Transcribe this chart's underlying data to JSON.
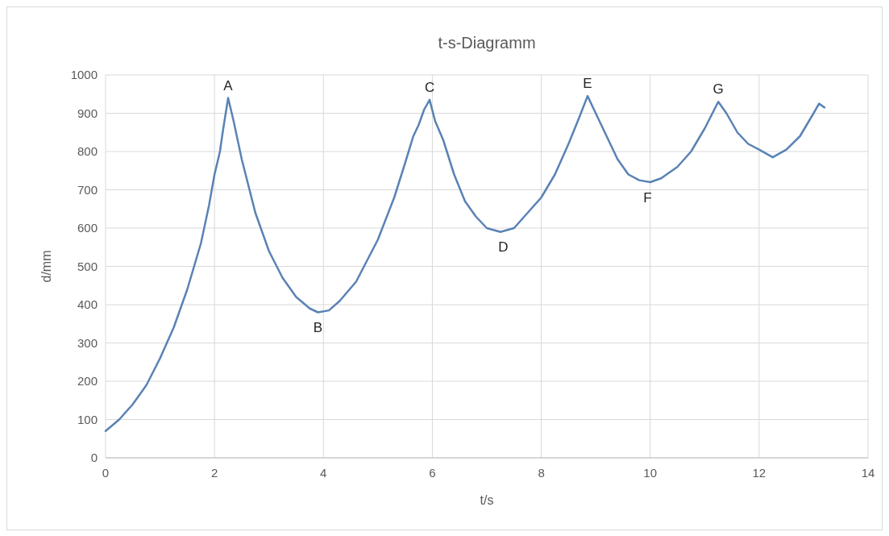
{
  "chart_data": {
    "type": "line",
    "title": "t-s-Diagramm",
    "xlabel": "t/s",
    "ylabel": "d/mm",
    "xlim": [
      0,
      14
    ],
    "xticks": [
      0,
      2,
      4,
      6,
      8,
      10,
      12,
      14
    ],
    "ylim": [
      0,
      1000
    ],
    "yticks": [
      0,
      100,
      200,
      300,
      400,
      500,
      600,
      700,
      800,
      900,
      1000
    ],
    "grid": true,
    "marker": "none",
    "line_style": "solid",
    "series": [
      {
        "color": "#5a82b4",
        "x": [
          0,
          0.25,
          0.5,
          0.75,
          1.0,
          1.25,
          1.5,
          1.75,
          1.9,
          2.0,
          2.1,
          2.15,
          2.25,
          2.35,
          2.5,
          2.75,
          3.0,
          3.25,
          3.5,
          3.75,
          3.9,
          4.1,
          4.3,
          4.6,
          5.0,
          5.3,
          5.5,
          5.65,
          5.75,
          5.85,
          5.95,
          6.05,
          6.2,
          6.4,
          6.6,
          6.8,
          7.0,
          7.25,
          7.5,
          7.75,
          8.0,
          8.25,
          8.5,
          8.7,
          8.85,
          9.0,
          9.2,
          9.4,
          9.6,
          9.8,
          10.0,
          10.2,
          10.5,
          10.75,
          11.0,
          11.25,
          11.4,
          11.6,
          11.8,
          12.0,
          12.25,
          12.5,
          12.75,
          13.0,
          13.1,
          13.2
        ],
        "values": [
          70,
          100,
          140,
          190,
          260,
          340,
          440,
          560,
          660,
          740,
          800,
          850,
          940,
          880,
          780,
          640,
          540,
          470,
          420,
          390,
          380,
          385,
          410,
          460,
          570,
          680,
          770,
          840,
          870,
          910,
          935,
          880,
          830,
          740,
          670,
          630,
          600,
          590,
          600,
          640,
          680,
          740,
          820,
          890,
          945,
          900,
          840,
          780,
          740,
          725,
          720,
          730,
          760,
          800,
          860,
          930,
          900,
          850,
          820,
          805,
          785,
          805,
          840,
          900,
          925,
          915
        ]
      }
    ],
    "annotations": [
      {
        "text": "A",
        "x": 2.25,
        "y": 940
      },
      {
        "text": "B",
        "x": 3.9,
        "y": 380
      },
      {
        "text": "C",
        "x": 5.95,
        "y": 935
      },
      {
        "text": "D",
        "x": 7.3,
        "y": 590
      },
      {
        "text": "E",
        "x": 8.85,
        "y": 945
      },
      {
        "text": "F",
        "x": 9.95,
        "y": 718
      },
      {
        "text": "G",
        "x": 11.25,
        "y": 930
      }
    ]
  }
}
